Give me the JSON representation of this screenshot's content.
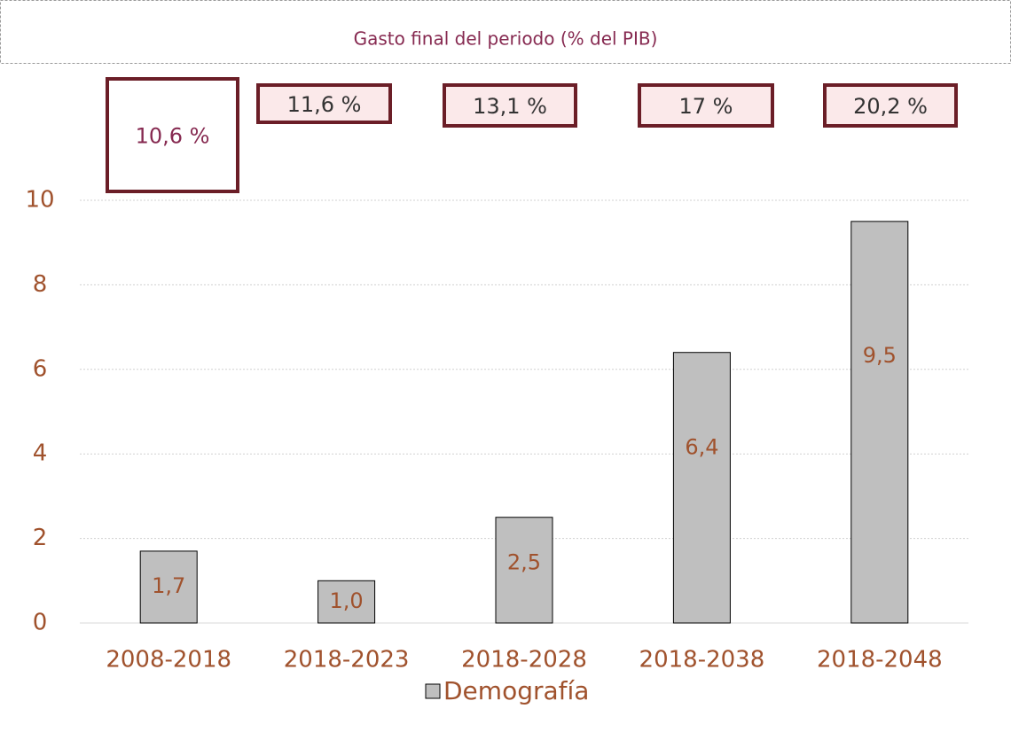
{
  "chart_data": {
    "type": "bar",
    "title": "Gasto final del periodo (% del PIB)",
    "categories": [
      "2008-2018",
      "2018-2023",
      "2018-2028",
      "2018-2038",
      "2018-2048"
    ],
    "series": [
      {
        "name": "Demografía",
        "color": "#bfbfbf",
        "values": [
          1.7,
          1.0,
          2.5,
          6.4,
          9.5
        ],
        "value_labels": [
          "1,7",
          "1,0",
          "2,5",
          "6,4",
          "9,5"
        ]
      }
    ],
    "annotations": [
      "10,6 %",
      "11,6 %",
      "13,1 %",
      "17 %",
      "20,2 %"
    ],
    "ylim": [
      0,
      10
    ],
    "yticks": [
      0,
      2,
      4,
      6,
      8,
      10
    ],
    "grid": true,
    "legend": "bottom"
  }
}
